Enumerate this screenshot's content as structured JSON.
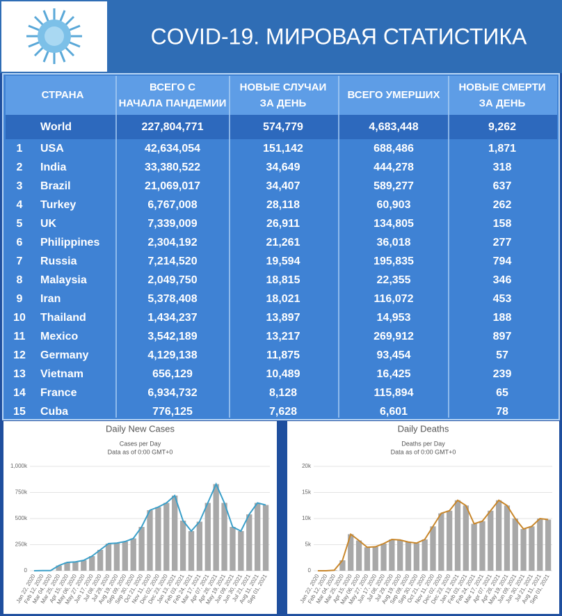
{
  "header": {
    "title": "COVID-19. МИРОВАЯ СТАТИСТИКА"
  },
  "table": {
    "headers": [
      "СТРАНА",
      "ВСЕГО С НАЧАЛА ПАНДЕМИИ",
      "НОВЫЕ СЛУЧАИ ЗА ДЕНЬ",
      "ВСЕГО УМЕРШИХ",
      "НОВЫЕ СМЕРТИ ЗА ДЕНЬ"
    ],
    "world": [
      "World",
      "227,804,771",
      "574,779",
      "4,683,448",
      "9,262"
    ],
    "rows": [
      [
        "1",
        "USA",
        "42,634,054",
        "151,142",
        "688,486",
        "1,871"
      ],
      [
        "2",
        "India",
        "33,380,522",
        "34,649",
        "444,278",
        "318"
      ],
      [
        "3",
        "Brazil",
        "21,069,017",
        "34,407",
        "589,277",
        "637"
      ],
      [
        "4",
        "Turkey",
        "6,767,008",
        "28,118",
        "60,903",
        "262"
      ],
      [
        "5",
        "UK",
        "7,339,009",
        "26,911",
        "134,805",
        "158"
      ],
      [
        "6",
        "Philippines",
        "2,304,192",
        "21,261",
        "36,018",
        "277"
      ],
      [
        "7",
        "Russia",
        "7,214,520",
        "19,594",
        "195,835",
        "794"
      ],
      [
        "8",
        "Malaysia",
        "2,049,750",
        "18,815",
        "22,355",
        "346"
      ],
      [
        "9",
        "Iran",
        "5,378,408",
        "18,021",
        "116,072",
        "453"
      ],
      [
        "10",
        "Thailand",
        "1,434,237",
        "13,897",
        "14,953",
        "188"
      ],
      [
        "11",
        "Mexico",
        "3,542,189",
        "13,217",
        "269,912",
        "897"
      ],
      [
        "12",
        "Germany",
        "4,129,138",
        "11,875",
        "93,454",
        "57"
      ],
      [
        "13",
        "Vietnam",
        "656,129",
        "10,489",
        "16,425",
        "239"
      ],
      [
        "14",
        "France",
        "6,934,732",
        "8,128",
        "115,894",
        "65"
      ],
      [
        "15",
        "Cuba",
        "776,125",
        "7,628",
        "6,601",
        "78"
      ]
    ]
  },
  "chart_data": [
    {
      "type": "line",
      "title": "Daily New Cases",
      "subtitle": "Cases per Day",
      "note": "Data as of 0:00 GMT+0",
      "x": [
        "Jan 22, 2020",
        "Feb 12, 2020",
        "Mar 04, 2020",
        "Mar 25, 2020",
        "Apr 15, 2020",
        "May 06, 2020",
        "May 27, 2020",
        "Jun 17, 2020",
        "Jul 08, 2020",
        "Jul 29, 2020",
        "Aug 19, 2020",
        "Sep 09, 2020",
        "Sep 30, 2020",
        "Oct 21, 2020",
        "Nov 11, 2020",
        "Dec 02, 2020",
        "Dec 23, 2020",
        "Jan 13, 2021",
        "Feb 03, 2021",
        "Feb 24, 2021",
        "Mar 17, 2021",
        "Apr 07, 2021",
        "Apr 28, 2021",
        "May 19, 2021",
        "Jun 09, 2021",
        "Jun 30, 2021",
        "Jul 21, 2021",
        "Aug 11, 2021",
        "Sep 01, 2021"
      ],
      "values": [
        0,
        2000,
        2000,
        50000,
        80000,
        85000,
        100000,
        140000,
        200000,
        260000,
        265000,
        280000,
        310000,
        420000,
        580000,
        610000,
        650000,
        720000,
        480000,
        380000,
        470000,
        650000,
        830000,
        650000,
        420000,
        380000,
        540000,
        650000,
        630000
      ],
      "color": "#3a9fc9",
      "bar_color": "#a8a8a8",
      "ylim": [
        0,
        1000000
      ],
      "yticks": [
        0,
        {
          "value": 250000,
          "label": "250k"
        },
        {
          "value": 500000,
          "label": "500k"
        },
        {
          "value": 750000,
          "label": "750k"
        },
        {
          "value": 1000000,
          "label": "1,000k"
        }
      ],
      "grid": true
    },
    {
      "type": "line",
      "title": "Daily Deaths",
      "subtitle": "Deaths per Day",
      "note": "Data as of 0:00 GMT+0",
      "x": [
        "Jan 22, 2020",
        "Feb 12, 2020",
        "Mar 04, 2020",
        "Mar 25, 2020",
        "Apr 15, 2020",
        "May 06, 2020",
        "May 27, 2020",
        "Jun 17, 2020",
        "Jul 08, 2020",
        "Jul 29, 2020",
        "Aug 19, 2020",
        "Sep 09, 2020",
        "Sep 30, 2020",
        "Oct 21, 2020",
        "Nov 11, 2020",
        "Dec 02, 2020",
        "Dec 23, 2020",
        "Jan 13, 2021",
        "Feb 03, 2021",
        "Feb 24, 2021",
        "Mar 17, 2021",
        "Apr 07, 2021",
        "Apr 28, 2021",
        "May 19, 2021",
        "Jun 09, 2021",
        "Jun 30, 2021",
        "Jul 21, 2021",
        "Aug 11, 2021",
        "Sep 01, 2021"
      ],
      "values": [
        0,
        0,
        100,
        2000,
        7000,
        5800,
        4500,
        4600,
        5200,
        6000,
        5900,
        5500,
        5300,
        6000,
        8500,
        11000,
        11500,
        13500,
        12500,
        9000,
        9500,
        11500,
        13500,
        12500,
        10000,
        8000,
        8500,
        10000,
        9800
      ],
      "color": "#c8862a",
      "bar_color": "#a8a8a8",
      "ylim": [
        0,
        20000
      ],
      "yticks": [
        0,
        {
          "value": 5000,
          "label": "5k"
        },
        {
          "value": 10000,
          "label": "10k"
        },
        {
          "value": 15000,
          "label": "15k"
        },
        {
          "value": 20000,
          "label": "20k"
        }
      ],
      "grid": true
    }
  ]
}
